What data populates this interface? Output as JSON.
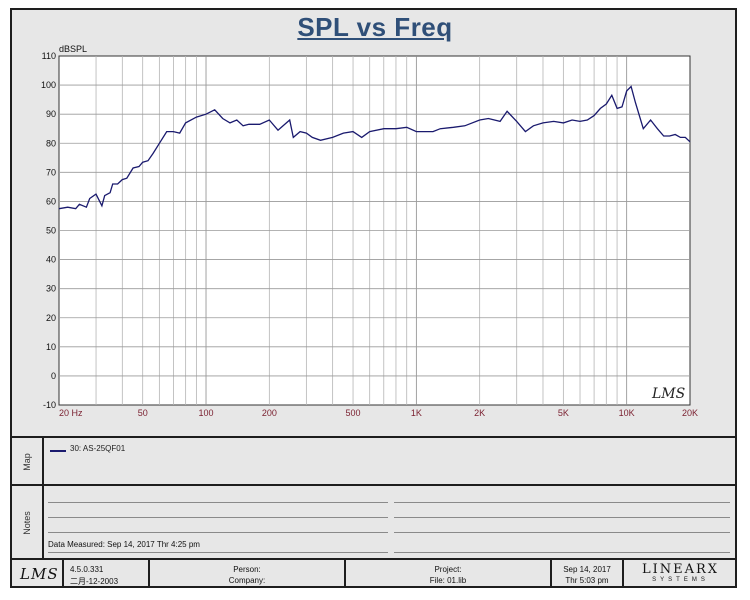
{
  "chart_data": {
    "type": "line",
    "title": "SPL vs Freq",
    "ylabel": "dBSPL",
    "xlabel": "",
    "x_scale": "log",
    "xlim": [
      20,
      20000
    ],
    "ylim": [
      -10,
      110
    ],
    "y_ticks": [
      "-10",
      "0",
      "10",
      "20",
      "30",
      "40",
      "50",
      "60",
      "70",
      "80",
      "90",
      "100",
      "110"
    ],
    "x_ticks": [
      {
        "value": 20,
        "label": "20  Hz"
      },
      {
        "value": 50,
        "label": "50"
      },
      {
        "value": 100,
        "label": "100"
      },
      {
        "value": 200,
        "label": "200"
      },
      {
        "value": 500,
        "label": "500"
      },
      {
        "value": 1000,
        "label": "1K"
      },
      {
        "value": 2000,
        "label": "2K"
      },
      {
        "value": 5000,
        "label": "5K"
      },
      {
        "value": 10000,
        "label": "10K"
      },
      {
        "value": 20000,
        "label": "20K"
      }
    ],
    "grid": true,
    "series": [
      {
        "name": "30: AS-25QF01",
        "color": "#1a1a6e",
        "x": [
          20,
          22,
          24,
          25,
          27,
          28,
          30,
          32,
          33,
          35,
          36,
          38,
          40,
          42,
          45,
          48,
          50,
          53,
          56,
          60,
          65,
          70,
          75,
          80,
          90,
          100,
          110,
          120,
          130,
          140,
          150,
          160,
          180,
          200,
          220,
          250,
          260,
          280,
          300,
          320,
          350,
          400,
          450,
          500,
          550,
          600,
          700,
          800,
          900,
          1000,
          1100,
          1200,
          1300,
          1500,
          1700,
          2000,
          2200,
          2500,
          2700,
          3000,
          3300,
          3600,
          4000,
          4500,
          5000,
          5500,
          6000,
          6500,
          7000,
          7500,
          8000,
          8500,
          9000,
          9500,
          10000,
          10500,
          11000,
          12000,
          13000,
          14000,
          15000,
          16000,
          17000,
          18000,
          19000,
          20000
        ],
        "y": [
          57.5,
          58,
          57.5,
          59,
          58,
          61,
          62.5,
          58.5,
          62,
          63,
          66,
          66,
          67.5,
          68,
          71.5,
          72,
          73.5,
          74,
          76.5,
          80,
          84,
          84,
          83.5,
          87,
          89,
          90,
          91.5,
          88.5,
          87,
          88,
          86,
          86.5,
          86.5,
          88,
          84.5,
          88,
          82,
          84,
          83.5,
          82,
          81,
          82,
          83.5,
          84,
          82,
          84,
          85,
          85,
          85.5,
          84,
          84,
          84,
          85,
          85.5,
          86,
          88,
          88.5,
          87.5,
          91,
          87.5,
          84,
          86,
          87,
          87.5,
          87,
          88,
          87.5,
          88,
          89.5,
          92,
          93.5,
          96.5,
          92,
          92.5,
          98,
          99.5,
          94,
          85,
          88,
          85,
          82.5,
          82.5,
          83,
          82,
          82,
          80.5
        ]
      }
    ]
  },
  "watermark_logo": "LMS",
  "map": {
    "label": "Map",
    "legend_entry": "30: AS-25QF01"
  },
  "notes": {
    "label": "Notes",
    "data_measured": "Data Measured: Sep 14, 2017  Thr  4:25 pm"
  },
  "footer": {
    "logo": "LMS",
    "version": "4.5.0.331",
    "version_date": "二月-12-2003",
    "person_label": "Person:",
    "company_label": "Company:",
    "project_label": "Project:",
    "file_label": "File: 01.lib",
    "date": "Sep 14, 2017",
    "time": "Thr  5:03 pm",
    "brand": "LINEARX",
    "brand_sub": "SYSTEMS"
  }
}
